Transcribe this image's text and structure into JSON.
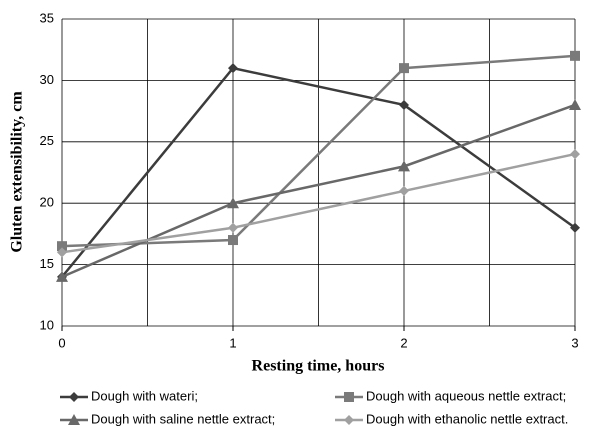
{
  "chart_data": {
    "type": "line",
    "x_label": "Resting time, hours",
    "y_label": "Gluten extensibility, cm",
    "x": [
      0,
      1,
      2,
      3
    ],
    "xlim": [
      0,
      3
    ],
    "xticks": [
      0,
      1,
      2,
      3
    ],
    "xgrid": [
      0,
      0.5,
      1,
      1.5,
      2,
      2.5,
      3
    ],
    "ylim": [
      10,
      35
    ],
    "yticks": [
      10,
      15,
      20,
      25,
      30,
      35
    ],
    "grid": true,
    "legend": "bottom",
    "series": [
      {
        "name": "Dough with wateri;",
        "color": "#3c3c3c",
        "marker": "diamond",
        "values": [
          14,
          31,
          28,
          18
        ]
      },
      {
        "name": "Dough with aqueous nettle extract;",
        "color": "#7a7a7a",
        "marker": "square",
        "values": [
          16.5,
          17,
          31,
          32
        ]
      },
      {
        "name": "Dough with saline nettle extract;",
        "color": "#686868",
        "marker": "triangle",
        "values": [
          14,
          20,
          23,
          28
        ]
      },
      {
        "name": "Dough with ethanolic nettle extract.",
        "color": "#a0a0a0",
        "marker": "diamond",
        "values": [
          16,
          18,
          21,
          24
        ]
      }
    ]
  }
}
